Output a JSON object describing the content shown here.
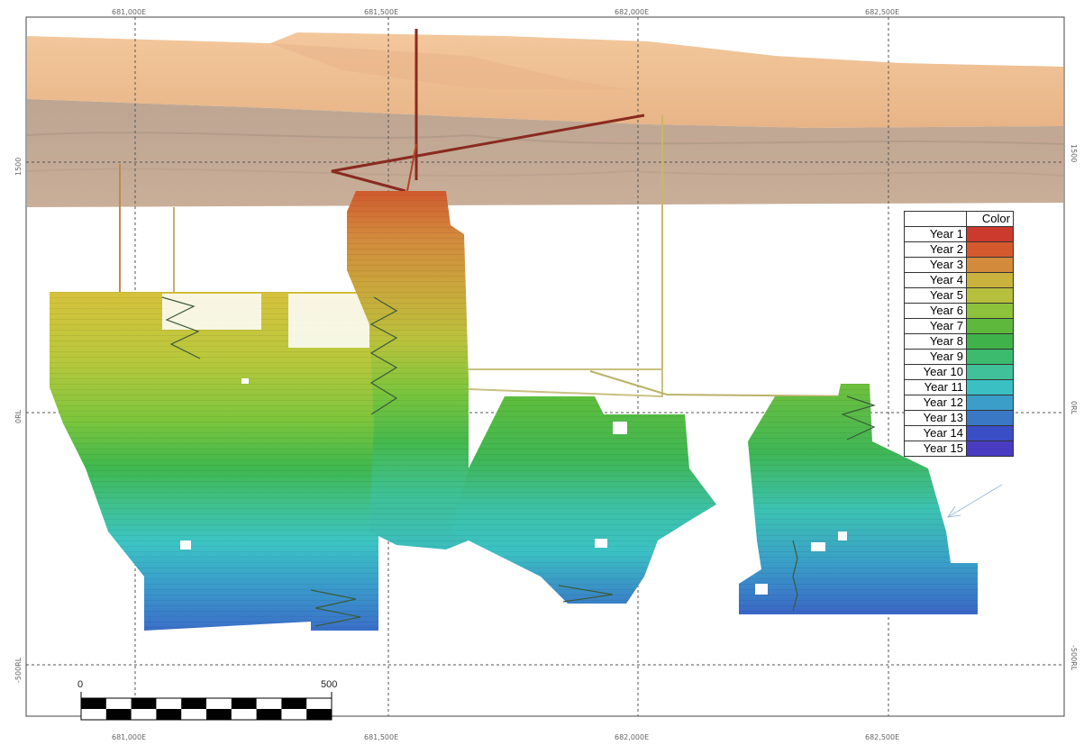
{
  "grid": {
    "top_easting_labels": [
      "681,000E",
      "681,500E",
      "682,000E",
      "682,500E"
    ],
    "bottom_easting_labels": [
      "681,000E",
      "681,500E",
      "682,000E",
      "682,500E"
    ],
    "left_elevation_labels": [
      "1500",
      "0RL",
      "-500RL"
    ],
    "right_elevation_labels": [
      "1500",
      "0RL",
      "-500RL"
    ]
  },
  "legend": {
    "header": "Color",
    "items": [
      {
        "label": "Year 1",
        "color": "#cc3a2e"
      },
      {
        "label": "Year 2",
        "color": "#d45a2e"
      },
      {
        "label": "Year 3",
        "color": "#d38a3a"
      },
      {
        "label": "Year 4",
        "color": "#cbb23c"
      },
      {
        "label": "Year 5",
        "color": "#b7c03c"
      },
      {
        "label": "Year 6",
        "color": "#8cc23c"
      },
      {
        "label": "Year 7",
        "color": "#5db83c"
      },
      {
        "label": "Year 8",
        "color": "#3fb34a"
      },
      {
        "label": "Year 9",
        "color": "#3cba6e"
      },
      {
        "label": "Year 10",
        "color": "#40c19a"
      },
      {
        "label": "Year 11",
        "color": "#3ac0c2"
      },
      {
        "label": "Year 12",
        "color": "#3a9ec8"
      },
      {
        "label": "Year 13",
        "color": "#3a78c6"
      },
      {
        "label": "Year 14",
        "color": "#3a4ec6"
      },
      {
        "label": "Year 15",
        "color": "#4a3cc2"
      }
    ]
  },
  "scale_bar": {
    "start_label": "0",
    "end_label": "500"
  }
}
